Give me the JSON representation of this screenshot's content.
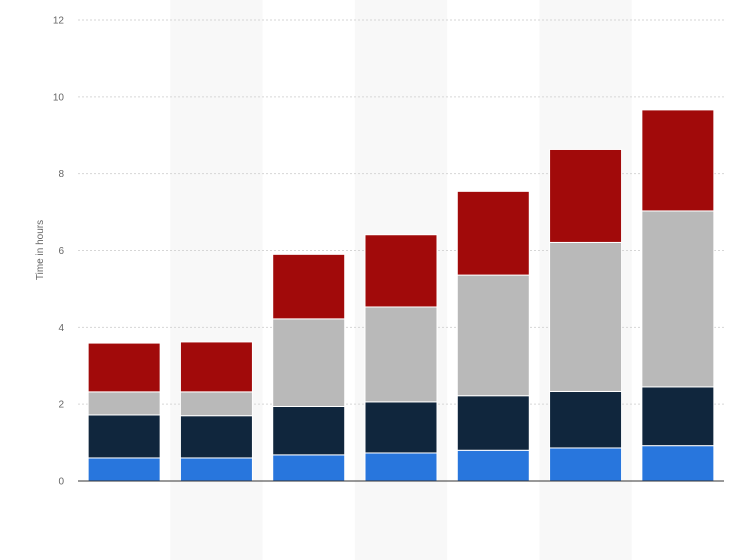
{
  "chart_data": {
    "type": "bar",
    "stacked": true,
    "title": "",
    "xlabel": "",
    "ylabel": "Time in hours",
    "ylim": [
      0,
      12
    ],
    "yticks": [
      0,
      2,
      4,
      6,
      8,
      10,
      12
    ],
    "categories": [
      "",
      "",
      "",
      "",
      "",
      "",
      ""
    ],
    "grid": true,
    "series": [
      {
        "name": "",
        "color": "#2876dd",
        "values": [
          0.6,
          0.6,
          0.68,
          0.73,
          0.8,
          0.86,
          0.92
        ]
      },
      {
        "name": "",
        "color": "#10263d",
        "values": [
          1.12,
          1.1,
          1.26,
          1.33,
          1.42,
          1.47,
          1.53
        ]
      },
      {
        "name": "",
        "color": "#b9b9b9",
        "values": [
          0.6,
          0.62,
          2.28,
          2.47,
          3.14,
          3.88,
          4.58
        ]
      },
      {
        "name": "",
        "color": "#a10a0a",
        "values": [
          1.27,
          1.3,
          1.68,
          1.88,
          2.18,
          2.42,
          2.63
        ]
      }
    ]
  }
}
